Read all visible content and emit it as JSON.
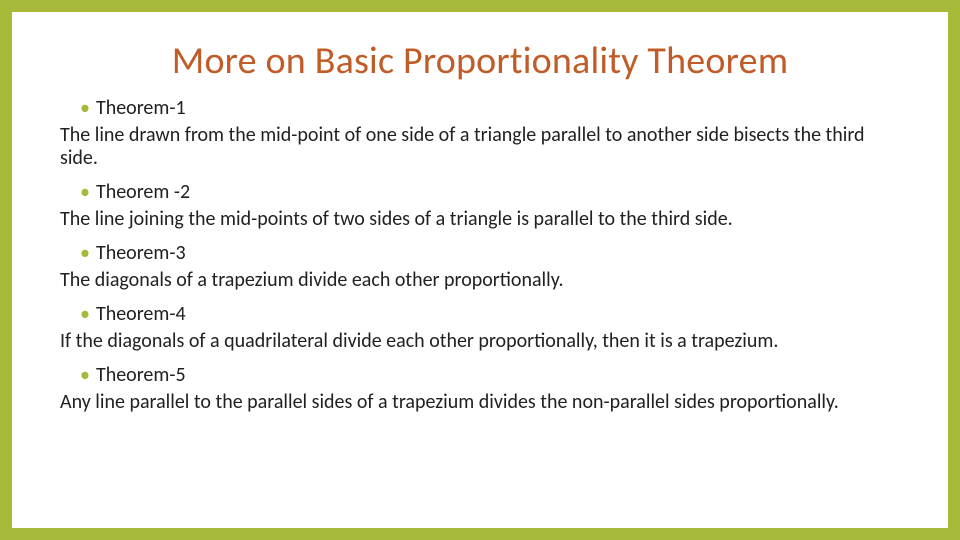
{
  "slide": {
    "title": "More on Basic Proportionality Theorem",
    "title_color": "#c05c28",
    "border_color": "#a8b838",
    "bullet_color": "#a8b838",
    "text_color": "#222020",
    "background_color": "#ffffff",
    "title_fontsize": 38,
    "body_fontsize": 20,
    "theorems": [
      {
        "label": "Theorem-1",
        "body": "The line drawn from the mid-point of one side of a triangle parallel to another side bisects the third side."
      },
      {
        "label": "Theorem -2",
        "body": "The line joining the mid-points of two sides of a triangle is parallel to the third side."
      },
      {
        "label": "Theorem-3",
        "body": "The diagonals of a trapezium divide each other proportionally."
      },
      {
        "label": "Theorem-4",
        "body": "If the diagonals of a quadrilateral divide each other proportionally, then it is a trapezium."
      },
      {
        "label": "Theorem-5",
        "body": "Any line parallel to the parallel sides of a trapezium divides the non-parallel sides proportionally."
      }
    ]
  }
}
